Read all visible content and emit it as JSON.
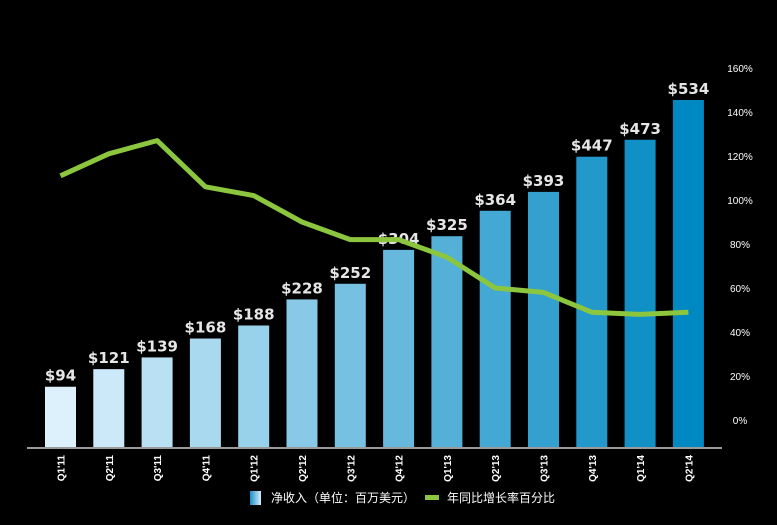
{
  "chart_data": {
    "type": "bar",
    "title": "",
    "categories": [
      "Q1'11",
      "Q2'11",
      "Q3'11",
      "Q4'11",
      "Q1'12",
      "Q2'12",
      "Q3'12",
      "Q4'12",
      "Q1'13",
      "Q2'13",
      "Q3'13",
      "Q4'13",
      "Q1'14",
      "Q2'14"
    ],
    "series": [
      {
        "name": "净收入（单位：百万美元）",
        "type": "bar",
        "axis": "left",
        "values": [
          94,
          121,
          139,
          168,
          188,
          228,
          252,
          304,
          325,
          364,
          393,
          447,
          473,
          534
        ],
        "labels": [
          "$94",
          "$121",
          "$139",
          "$168",
          "$188",
          "$228",
          "$252",
          "$304",
          "$325",
          "$364",
          "$393",
          "$447",
          "$473",
          "$534"
        ]
      },
      {
        "name": "年同比增长率百分比",
        "type": "line",
        "axis": "right",
        "values": [
          111,
          121,
          127,
          106,
          102,
          90,
          82,
          82,
          74,
          60,
          58,
          49,
          48,
          49
        ]
      }
    ],
    "y_left_range": [
      0,
      534
    ],
    "y_right": {
      "range": [
        0,
        160
      ],
      "ticks": [
        "160%",
        "140%",
        "120%",
        "100%",
        "80%",
        "60%",
        "40%",
        "20%",
        "0%"
      ],
      "tick_values": [
        160,
        140,
        120,
        100,
        80,
        60,
        40,
        20,
        0
      ]
    },
    "legend_position": "bottom",
    "grid": false,
    "colors": {
      "bar_start": "#dcf1fc",
      "bar_end": "#0088c2",
      "line": "#8cc63f",
      "axis": "#9a9a9a",
      "background": "#000000"
    }
  },
  "legend": {
    "bar_label": "净收入（单位：百万美元）",
    "line_label": "年同比增长率百分比"
  }
}
